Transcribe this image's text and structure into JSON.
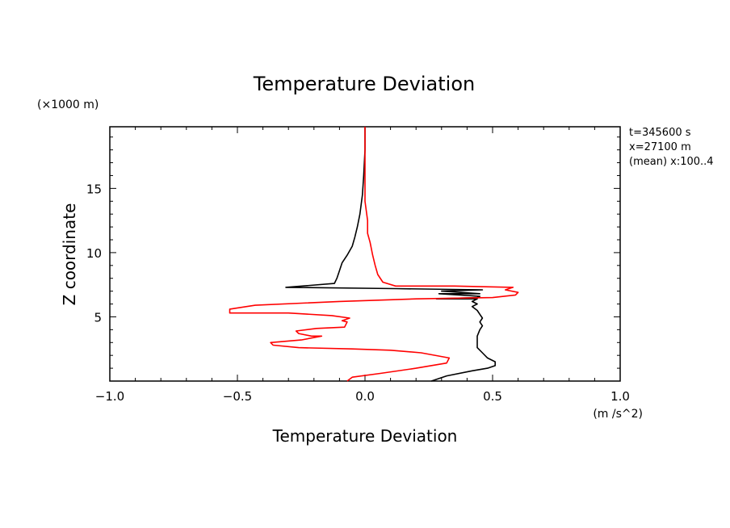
{
  "chart_data": {
    "type": "line",
    "title": "Temperature Deviation",
    "xlabel": "Temperature Deviation",
    "ylabel": "Z coordinate",
    "x_units": "(m /s^2)",
    "y_units": "(×1000 m)",
    "xlim": [
      -1.0,
      1.0
    ],
    "ylim": [
      0.0,
      19.8
    ],
    "x_ticks": [
      -1.0,
      -0.5,
      0.0,
      0.5,
      1.0
    ],
    "x_tick_labels": [
      "−1.0",
      "−0.5",
      "0.0",
      "0.5",
      "1.0"
    ],
    "y_ticks": [
      5,
      10,
      15
    ],
    "y_tick_labels": [
      "5",
      "10",
      "15"
    ],
    "annotations": [
      "t=345600 s",
      "x=27100 m",
      "(mean) x:100..4"
    ],
    "grid": false,
    "series": [
      {
        "name": "black profile",
        "color": "#000000",
        "points": [
          [
            0.26,
            0.0
          ],
          [
            0.32,
            0.4
          ],
          [
            0.42,
            0.8
          ],
          [
            0.48,
            1.0
          ],
          [
            0.51,
            1.2
          ],
          [
            0.51,
            1.5
          ],
          [
            0.48,
            1.8
          ],
          [
            0.46,
            2.2
          ],
          [
            0.44,
            2.6
          ],
          [
            0.44,
            3.0
          ],
          [
            0.44,
            3.5
          ],
          [
            0.45,
            4.0
          ],
          [
            0.46,
            4.3
          ],
          [
            0.45,
            4.6
          ],
          [
            0.46,
            4.9
          ],
          [
            0.45,
            5.2
          ],
          [
            0.44,
            5.5
          ],
          [
            0.42,
            5.8
          ],
          [
            0.44,
            6.0
          ],
          [
            0.42,
            6.2
          ],
          [
            0.44,
            6.4
          ],
          [
            0.28,
            6.4
          ],
          [
            0.44,
            6.5
          ],
          [
            0.45,
            6.6
          ],
          [
            0.29,
            6.8
          ],
          [
            0.45,
            6.8
          ],
          [
            0.3,
            7.0
          ],
          [
            0.46,
            7.1
          ],
          [
            0.12,
            7.2
          ],
          [
            -0.31,
            7.3
          ],
          [
            -0.12,
            7.6
          ],
          [
            -0.11,
            8.0
          ],
          [
            -0.1,
            8.6
          ],
          [
            -0.09,
            9.2
          ],
          [
            -0.07,
            9.8
          ],
          [
            -0.05,
            10.5
          ],
          [
            -0.04,
            11.2
          ],
          [
            -0.03,
            12.0
          ],
          [
            -0.02,
            13.0
          ],
          [
            -0.01,
            14.5
          ],
          [
            -0.005,
            16.0
          ],
          [
            0.0,
            18.0
          ],
          [
            0.0,
            19.8
          ]
        ]
      },
      {
        "name": "red profile",
        "color": "#ff0000",
        "points": [
          [
            -0.07,
            0.0
          ],
          [
            -0.05,
            0.3
          ],
          [
            0.06,
            0.6
          ],
          [
            0.2,
            1.0
          ],
          [
            0.32,
            1.4
          ],
          [
            0.33,
            1.8
          ],
          [
            0.22,
            2.2
          ],
          [
            0.1,
            2.4
          ],
          [
            -0.05,
            2.5
          ],
          [
            -0.26,
            2.6
          ],
          [
            -0.36,
            2.8
          ],
          [
            -0.37,
            3.0
          ],
          [
            -0.25,
            3.2
          ],
          [
            -0.17,
            3.5
          ],
          [
            -0.21,
            3.5
          ],
          [
            -0.26,
            3.7
          ],
          [
            -0.27,
            3.9
          ],
          [
            -0.19,
            4.1
          ],
          [
            -0.08,
            4.2
          ],
          [
            -0.07,
            4.6
          ],
          [
            -0.09,
            4.7
          ],
          [
            -0.06,
            4.9
          ],
          [
            -0.13,
            5.1
          ],
          [
            -0.3,
            5.3
          ],
          [
            -0.53,
            5.3
          ],
          [
            -0.53,
            5.6
          ],
          [
            -0.43,
            5.9
          ],
          [
            -0.1,
            6.2
          ],
          [
            0.2,
            6.4
          ],
          [
            0.5,
            6.5
          ],
          [
            0.59,
            6.7
          ],
          [
            0.6,
            6.9
          ],
          [
            0.55,
            7.1
          ],
          [
            0.58,
            7.3
          ],
          [
            0.35,
            7.4
          ],
          [
            0.12,
            7.4
          ],
          [
            0.07,
            7.7
          ],
          [
            0.05,
            8.3
          ],
          [
            0.04,
            9.0
          ],
          [
            0.03,
            9.8
          ],
          [
            0.02,
            10.8
          ],
          [
            0.01,
            11.5
          ],
          [
            0.01,
            12.5
          ],
          [
            0.0,
            14.0
          ],
          [
            0.0,
            16.0
          ],
          [
            0.0,
            18.0
          ],
          [
            0.0,
            19.8
          ]
        ]
      }
    ]
  }
}
